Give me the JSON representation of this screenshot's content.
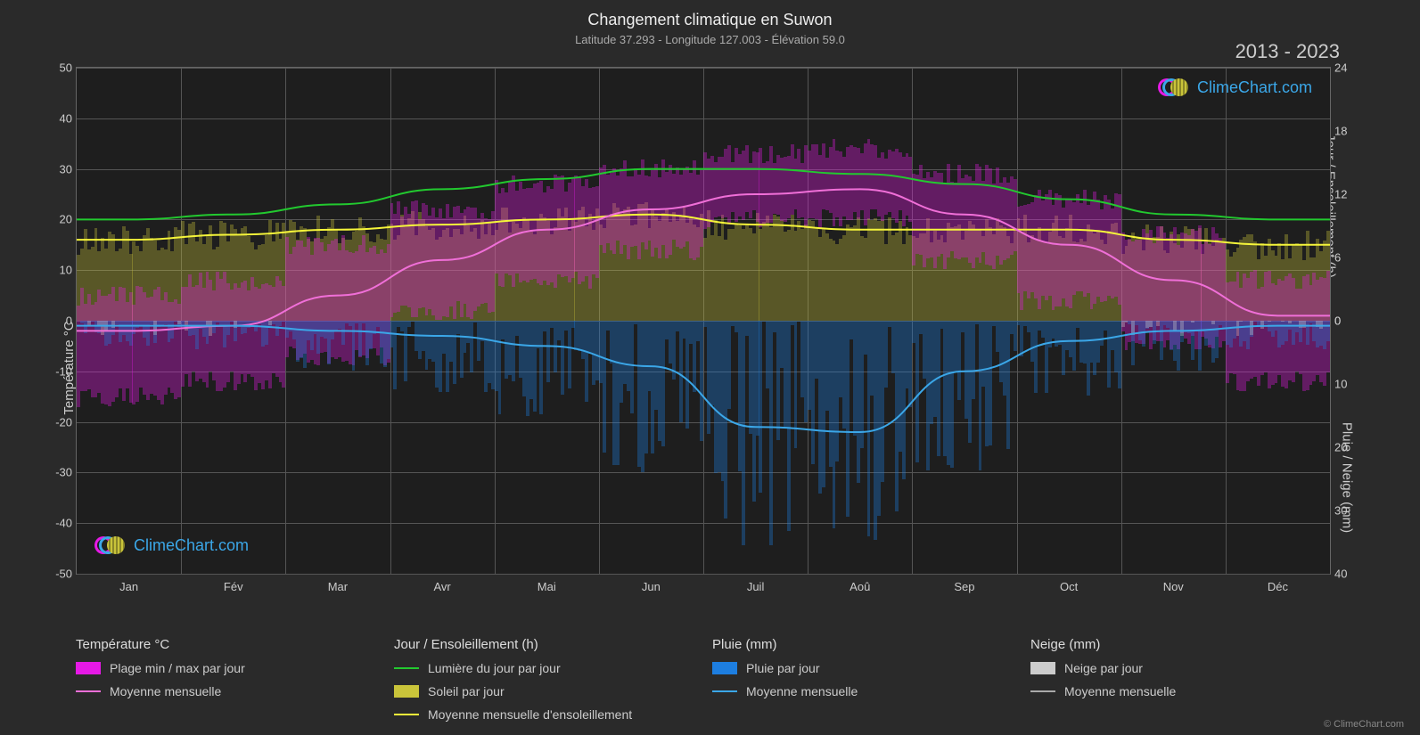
{
  "title": "Changement climatique en Suwon",
  "subtitle": "Latitude 37.293 - Longitude 127.003 - Élévation 59.0",
  "year_range": "2013 - 2023",
  "axis_left_title": "Température °C",
  "axis_right_top_title": "Jour / Ensoleillement (h)",
  "axis_right_bottom_title": "Pluie / Neige (mm)",
  "watermark_text": "ClimeChart.com",
  "copyright": "© ClimeChart.com",
  "chart": {
    "type": "composite-climate",
    "background_color": "#1e1e1e",
    "grid_color": "#555555",
    "text_color": "#cccccc",
    "y_left": {
      "min": -50,
      "max": 50,
      "step": 10,
      "ticks": [
        50,
        40,
        30,
        20,
        10,
        0,
        -10,
        -20,
        -30,
        -40,
        -50
      ]
    },
    "y_right_top": {
      "min": 0,
      "max": 24,
      "step": 6,
      "ticks": [
        24,
        18,
        12,
        6,
        0
      ]
    },
    "y_right_bottom": {
      "min": 0,
      "max": 40,
      "step": 10,
      "ticks": [
        0,
        10,
        20,
        30,
        40
      ]
    },
    "months": [
      "Jan",
      "Fév",
      "Mar",
      "Avr",
      "Mai",
      "Jun",
      "Juil",
      "Aoû",
      "Sep",
      "Oct",
      "Nov",
      "Déc"
    ],
    "series": {
      "temp_min_max_range": {
        "color": "#e619e6",
        "opacity": 0.35
      },
      "temp_mean_line": {
        "color": "#f06fd8",
        "width": 2,
        "values": [
          -2,
          -1,
          5,
          12,
          18,
          22,
          25,
          26,
          21,
          15,
          8,
          1
        ]
      },
      "daylight_line": {
        "color": "#22c92f",
        "width": 2,
        "values_left_scale": [
          20,
          21,
          23,
          26,
          28,
          30,
          30,
          29,
          27,
          24,
          21,
          20
        ]
      },
      "sunshine_bars": {
        "color": "#c9c43a",
        "opacity": 0.35
      },
      "sunshine_mean_line": {
        "color": "#f5f53a",
        "width": 2,
        "values_left_scale": [
          16,
          17,
          18,
          19,
          20,
          21,
          19,
          18,
          18,
          18,
          16,
          15
        ]
      },
      "rain_bars": {
        "color": "#1d7ee0",
        "opacity": 0.35
      },
      "rain_mean_line": {
        "color": "#3ba7e8",
        "width": 2,
        "values_left_scale": [
          -1,
          -1,
          -2,
          -3,
          -5,
          -9,
          -21,
          -22,
          -10,
          -4,
          -2,
          -1
        ]
      },
      "snow_bars": {
        "color": "#cccccc",
        "opacity": 0.35
      },
      "snow_mean_line": {
        "color": "#aaaaaa",
        "width": 2
      }
    },
    "daily_bars": {
      "temp_range": [
        {
          "m": 0,
          "lo": -15,
          "hi": 5
        },
        {
          "m": 1,
          "lo": -12,
          "hi": 8
        },
        {
          "m": 2,
          "lo": -7,
          "hi": 15
        },
        {
          "m": 3,
          "lo": 2,
          "hi": 22
        },
        {
          "m": 4,
          "lo": 8,
          "hi": 27
        },
        {
          "m": 5,
          "lo": 14,
          "hi": 30
        },
        {
          "m": 6,
          "lo": 20,
          "hi": 33
        },
        {
          "m": 7,
          "lo": 20,
          "hi": 34
        },
        {
          "m": 8,
          "lo": 12,
          "hi": 29
        },
        {
          "m": 9,
          "lo": 4,
          "hi": 24
        },
        {
          "m": 10,
          "lo": -4,
          "hi": 17
        },
        {
          "m": 11,
          "lo": -12,
          "hi": 8
        }
      ],
      "sun_hours": [
        {
          "m": 0,
          "v": 16
        },
        {
          "m": 1,
          "v": 17
        },
        {
          "m": 2,
          "v": 18
        },
        {
          "m": 3,
          "v": 19
        },
        {
          "m": 4,
          "v": 20
        },
        {
          "m": 5,
          "v": 21
        },
        {
          "m": 6,
          "v": 19
        },
        {
          "m": 7,
          "v": 18
        },
        {
          "m": 8,
          "v": 18
        },
        {
          "m": 9,
          "v": 18
        },
        {
          "m": 10,
          "v": 16
        },
        {
          "m": 11,
          "v": 15
        }
      ],
      "rain_peak": [
        {
          "m": 0,
          "v": -5
        },
        {
          "m": 1,
          "v": -6
        },
        {
          "m": 2,
          "v": -10
        },
        {
          "m": 3,
          "v": -15
        },
        {
          "m": 4,
          "v": -20
        },
        {
          "m": 5,
          "v": -30
        },
        {
          "m": 6,
          "v": -45
        },
        {
          "m": 7,
          "v": -45
        },
        {
          "m": 8,
          "v": -30
        },
        {
          "m": 9,
          "v": -15
        },
        {
          "m": 10,
          "v": -10
        },
        {
          "m": 11,
          "v": -6
        }
      ]
    }
  },
  "legend": {
    "groups": [
      {
        "title": "Température °C",
        "items": [
          {
            "type": "swatch",
            "color": "#e619e6",
            "label": "Plage min / max par jour"
          },
          {
            "type": "line",
            "color": "#f06fd8",
            "label": "Moyenne mensuelle"
          }
        ]
      },
      {
        "title": "Jour / Ensoleillement (h)",
        "items": [
          {
            "type": "line",
            "color": "#22c92f",
            "label": "Lumière du jour par jour"
          },
          {
            "type": "swatch",
            "color": "#c9c43a",
            "label": "Soleil par jour"
          },
          {
            "type": "line",
            "color": "#f5f53a",
            "label": "Moyenne mensuelle d'ensoleillement"
          }
        ]
      },
      {
        "title": "Pluie (mm)",
        "items": [
          {
            "type": "swatch",
            "color": "#1d7ee0",
            "label": "Pluie par jour"
          },
          {
            "type": "line",
            "color": "#3ba7e8",
            "label": "Moyenne mensuelle"
          }
        ]
      },
      {
        "title": "Neige (mm)",
        "items": [
          {
            "type": "swatch",
            "color": "#cccccc",
            "label": "Neige par jour"
          },
          {
            "type": "line",
            "color": "#aaaaaa",
            "label": "Moyenne mensuelle"
          }
        ]
      }
    ]
  },
  "colors": {
    "logo_c_outer": "#e619e6",
    "logo_c_inner": "#3ba7e8"
  }
}
